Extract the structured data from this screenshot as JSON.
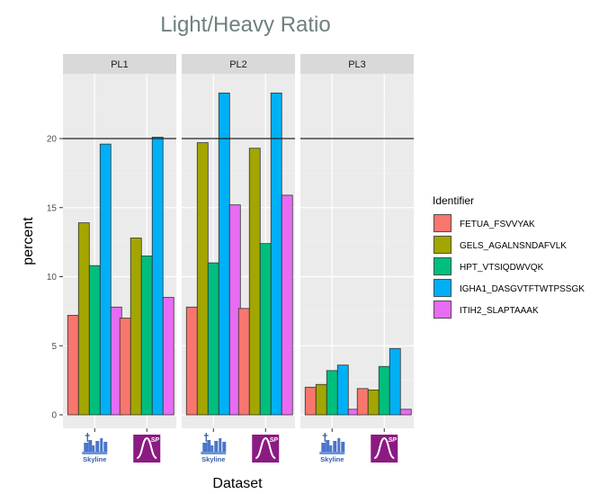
{
  "chart_data": {
    "type": "bar",
    "title": "Light/Heavy Ratio",
    "xlabel": "Dataset",
    "ylabel": "percent",
    "ylim": [
      0,
      25
    ],
    "yticks": [
      0,
      5,
      10,
      15,
      20
    ],
    "hline": 20,
    "grid": true,
    "legend_position": "right",
    "legend_title": "Identifier",
    "panels": [
      "PL1",
      "PL2",
      "PL3"
    ],
    "categories": [
      "Skyline",
      "SP"
    ],
    "category_icons": [
      "skyline-logo",
      "sp-logo"
    ],
    "series": [
      {
        "name": "FETUA_FSVVYAK",
        "color": "#F8766D",
        "values": [
          [
            7.2,
            7.0
          ],
          [
            7.8,
            7.7
          ],
          [
            2.0,
            1.9
          ]
        ]
      },
      {
        "name": "GELS_AGALNSNDAFVLK",
        "color": "#A3A500",
        "values": [
          [
            13.9,
            12.8
          ],
          [
            19.7,
            19.3
          ],
          [
            2.2,
            1.8
          ]
        ]
      },
      {
        "name": "HPT_VTSIQDWVQK",
        "color": "#00BF7D",
        "values": [
          [
            10.8,
            11.5
          ],
          [
            11.0,
            12.4
          ],
          [
            3.2,
            3.5
          ]
        ]
      },
      {
        "name": "IGHA1_DASGVTFTWTPSSGK",
        "color": "#00B0F6",
        "values": [
          [
            19.6,
            20.1
          ],
          [
            23.3,
            23.3
          ],
          [
            3.6,
            4.8
          ]
        ]
      },
      {
        "name": "ITIH2_SLAPTAAAK",
        "color": "#E76BF3",
        "values": [
          [
            7.8,
            8.5
          ],
          [
            15.2,
            15.9
          ],
          [
            0.4,
            0.4
          ]
        ]
      }
    ]
  }
}
